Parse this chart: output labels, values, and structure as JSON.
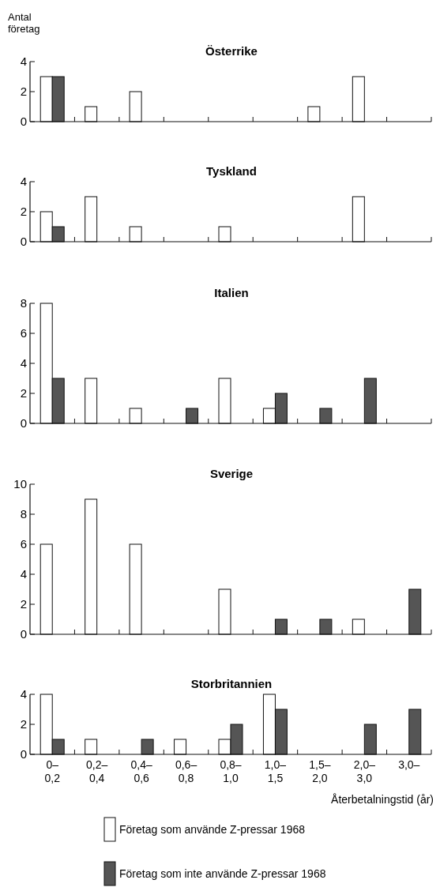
{
  "chart_data": [
    {
      "type": "bar",
      "title": "Österrike",
      "ylabel": "Antal företag",
      "categories": [
        "0–0,2",
        "0,2–0,4",
        "0,4–0,6",
        "0,6–0,8",
        "0,8–1,0",
        "1,0–1,5",
        "1,5–2,0",
        "2,0–3,0",
        "3,0–"
      ],
      "tick_labels": "y",
      "ylim": [
        0,
        4
      ],
      "yticks": [
        0,
        2,
        4
      ],
      "series": [
        {
          "color": "#ffffff",
          "values": [
            3,
            1,
            2,
            0,
            0,
            0,
            1,
            3,
            0
          ]
        },
        {
          "color": "#555555",
          "values": [
            3,
            0,
            0,
            0,
            0,
            0,
            0,
            0,
            0
          ]
        }
      ]
    },
    {
      "type": "bar",
      "title": "Tyskland",
      "categories": [
        "0–0,2",
        "0,2–0,4",
        "0,4–0,6",
        "0,6–0,8",
        "0,8–1,0",
        "1,0–1,5",
        "1,5–2,0",
        "2,0–3,0",
        "3,0–"
      ],
      "tick_labels": "y",
      "ylim": [
        0,
        4
      ],
      "yticks": [
        0,
        2,
        4
      ],
      "series": [
        {
          "color": "#ffffff",
          "values": [
            2,
            3,
            1,
            0,
            1,
            0,
            0,
            3,
            0
          ]
        },
        {
          "color": "#555555",
          "values": [
            1,
            0,
            0,
            0,
            0,
            0,
            0,
            0,
            0
          ]
        }
      ]
    },
    {
      "type": "bar",
      "title": "Italien",
      "categories": [
        "0–0,2",
        "0,2–0,4",
        "0,4–0,6",
        "0,6–0,8",
        "0,8–1,0",
        "1,0–1,5",
        "1,5–2,0",
        "2,0–3,0",
        "3,0–"
      ],
      "tick_labels": "y",
      "ylim": [
        0,
        8
      ],
      "yticks": [
        0,
        2,
        4,
        6,
        8
      ],
      "series": [
        {
          "color": "#ffffff",
          "values": [
            8,
            3,
            1,
            0,
            3,
            1,
            0,
            0,
            0
          ]
        },
        {
          "color": "#555555",
          "values": [
            3,
            0,
            0,
            1,
            0,
            2,
            1,
            3,
            0
          ]
        }
      ]
    },
    {
      "type": "bar",
      "title": "Sverige",
      "categories": [
        "0–0,2",
        "0,2–0,4",
        "0,4–0,6",
        "0,6–0,8",
        "0,8–1,0",
        "1,0–1,5",
        "1,5–2,0",
        "2,0–3,0",
        "3,0–"
      ],
      "tick_labels": "y",
      "ylim": [
        0,
        10
      ],
      "yticks": [
        0,
        2,
        4,
        6,
        8,
        10
      ],
      "series": [
        {
          "color": "#ffffff",
          "values": [
            6,
            9,
            6,
            0,
            3,
            0,
            0,
            1,
            0
          ]
        },
        {
          "color": "#555555",
          "values": [
            0,
            0,
            0,
            0,
            0,
            1,
            1,
            0,
            3
          ]
        }
      ]
    },
    {
      "type": "bar",
      "title": "Storbritannien",
      "xlabel": "Återbetalningstid (år)",
      "categories": [
        "0–0,2",
        "0,2–0,4",
        "0,4–0,6",
        "0,6–0,8",
        "0,8–1,0",
        "1,0–1,5",
        "1,5–2,0",
        "2,0–3,0",
        "3,0–"
      ],
      "ylim": [
        0,
        4
      ],
      "yticks": [
        0,
        2,
        4
      ],
      "legend": "bottom",
      "series": [
        {
          "name": "Företag som använde Z-pressar 1968",
          "color": "#ffffff",
          "values": [
            4,
            1,
            0,
            1,
            1,
            4,
            0,
            0,
            0
          ]
        },
        {
          "name": "Företag som inte använde Z-pressar 1968",
          "color": "#555555",
          "values": [
            1,
            0,
            1,
            0,
            2,
            3,
            0,
            2,
            3
          ]
        }
      ]
    }
  ]
}
